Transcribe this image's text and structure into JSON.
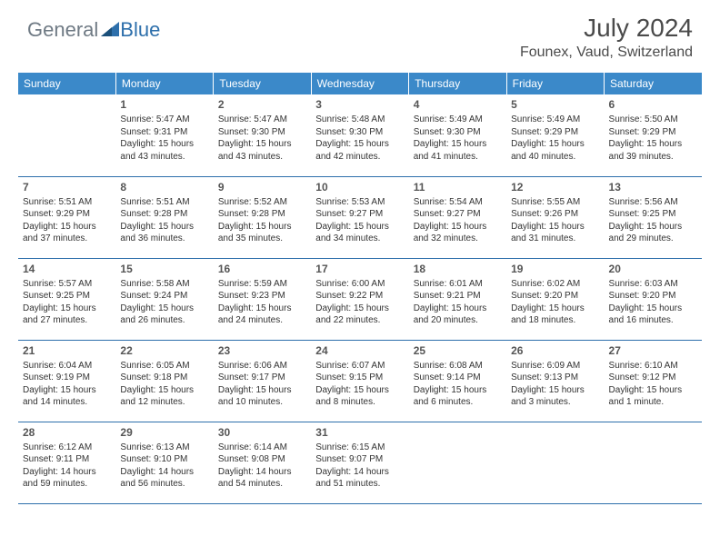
{
  "logo": {
    "word1": "General",
    "word2": "Blue"
  },
  "header": {
    "title": "July 2024",
    "location": "Founex, Vaud, Switzerland"
  },
  "colors": {
    "header_bg": "#3b89c9",
    "header_text": "#ffffff",
    "border": "#2d6fab",
    "logo_gray": "#6f7a84",
    "logo_blue": "#2d6fab"
  },
  "dayHeaders": [
    "Sunday",
    "Monday",
    "Tuesday",
    "Wednesday",
    "Thursday",
    "Friday",
    "Saturday"
  ],
  "startWeekday": 1,
  "daysInMonth": 31,
  "days": {
    "1": {
      "sunrise": "5:47 AM",
      "sunset": "9:31 PM",
      "day_h": 15,
      "day_m": 43
    },
    "2": {
      "sunrise": "5:47 AM",
      "sunset": "9:30 PM",
      "day_h": 15,
      "day_m": 43
    },
    "3": {
      "sunrise": "5:48 AM",
      "sunset": "9:30 PM",
      "day_h": 15,
      "day_m": 42
    },
    "4": {
      "sunrise": "5:49 AM",
      "sunset": "9:30 PM",
      "day_h": 15,
      "day_m": 41
    },
    "5": {
      "sunrise": "5:49 AM",
      "sunset": "9:29 PM",
      "day_h": 15,
      "day_m": 40
    },
    "6": {
      "sunrise": "5:50 AM",
      "sunset": "9:29 PM",
      "day_h": 15,
      "day_m": 39
    },
    "7": {
      "sunrise": "5:51 AM",
      "sunset": "9:29 PM",
      "day_h": 15,
      "day_m": 37
    },
    "8": {
      "sunrise": "5:51 AM",
      "sunset": "9:28 PM",
      "day_h": 15,
      "day_m": 36
    },
    "9": {
      "sunrise": "5:52 AM",
      "sunset": "9:28 PM",
      "day_h": 15,
      "day_m": 35
    },
    "10": {
      "sunrise": "5:53 AM",
      "sunset": "9:27 PM",
      "day_h": 15,
      "day_m": 34
    },
    "11": {
      "sunrise": "5:54 AM",
      "sunset": "9:27 PM",
      "day_h": 15,
      "day_m": 32
    },
    "12": {
      "sunrise": "5:55 AM",
      "sunset": "9:26 PM",
      "day_h": 15,
      "day_m": 31
    },
    "13": {
      "sunrise": "5:56 AM",
      "sunset": "9:25 PM",
      "day_h": 15,
      "day_m": 29
    },
    "14": {
      "sunrise": "5:57 AM",
      "sunset": "9:25 PM",
      "day_h": 15,
      "day_m": 27
    },
    "15": {
      "sunrise": "5:58 AM",
      "sunset": "9:24 PM",
      "day_h": 15,
      "day_m": 26
    },
    "16": {
      "sunrise": "5:59 AM",
      "sunset": "9:23 PM",
      "day_h": 15,
      "day_m": 24
    },
    "17": {
      "sunrise": "6:00 AM",
      "sunset": "9:22 PM",
      "day_h": 15,
      "day_m": 22
    },
    "18": {
      "sunrise": "6:01 AM",
      "sunset": "9:21 PM",
      "day_h": 15,
      "day_m": 20
    },
    "19": {
      "sunrise": "6:02 AM",
      "sunset": "9:20 PM",
      "day_h": 15,
      "day_m": 18
    },
    "20": {
      "sunrise": "6:03 AM",
      "sunset": "9:20 PM",
      "day_h": 15,
      "day_m": 16
    },
    "21": {
      "sunrise": "6:04 AM",
      "sunset": "9:19 PM",
      "day_h": 15,
      "day_m": 14
    },
    "22": {
      "sunrise": "6:05 AM",
      "sunset": "9:18 PM",
      "day_h": 15,
      "day_m": 12
    },
    "23": {
      "sunrise": "6:06 AM",
      "sunset": "9:17 PM",
      "day_h": 15,
      "day_m": 10
    },
    "24": {
      "sunrise": "6:07 AM",
      "sunset": "9:15 PM",
      "day_h": 15,
      "day_m": 8
    },
    "25": {
      "sunrise": "6:08 AM",
      "sunset": "9:14 PM",
      "day_h": 15,
      "day_m": 6
    },
    "26": {
      "sunrise": "6:09 AM",
      "sunset": "9:13 PM",
      "day_h": 15,
      "day_m": 3
    },
    "27": {
      "sunrise": "6:10 AM",
      "sunset": "9:12 PM",
      "day_h": 15,
      "day_m": 1
    },
    "28": {
      "sunrise": "6:12 AM",
      "sunset": "9:11 PM",
      "day_h": 14,
      "day_m": 59
    },
    "29": {
      "sunrise": "6:13 AM",
      "sunset": "9:10 PM",
      "day_h": 14,
      "day_m": 56
    },
    "30": {
      "sunrise": "6:14 AM",
      "sunset": "9:08 PM",
      "day_h": 14,
      "day_m": 54
    },
    "31": {
      "sunrise": "6:15 AM",
      "sunset": "9:07 PM",
      "day_h": 14,
      "day_m": 51
    }
  }
}
